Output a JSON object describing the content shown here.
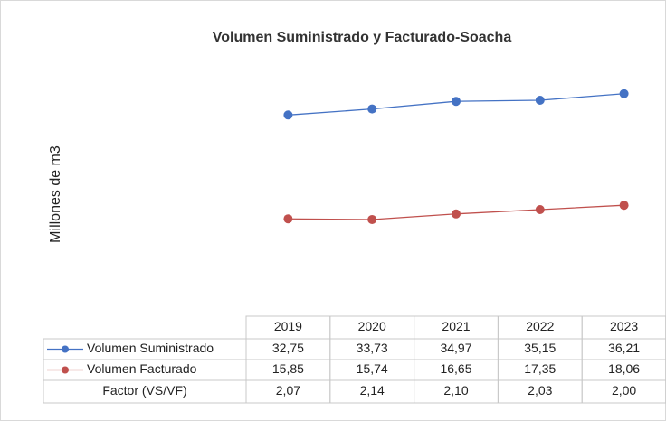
{
  "chart_data": {
    "type": "line",
    "title": "Volumen Suministrado y Facturado-Soacha",
    "y_label": "Millones de m3",
    "categories": [
      "2019",
      "2020",
      "2021",
      "2022",
      "2023"
    ],
    "ylim": [
      0,
      45
    ],
    "series": [
      {
        "name": "Volumen Suministrado",
        "color": "#4472c4",
        "values": [
          32.75,
          33.73,
          34.97,
          35.15,
          36.21
        ],
        "value_labels": [
          "32,75",
          "33,73",
          "34,97",
          "35,15",
          "36,21"
        ]
      },
      {
        "name": "Volumen Facturado",
        "color": "#c0504d",
        "values": [
          15.85,
          15.74,
          16.65,
          17.35,
          18.06
        ],
        "value_labels": [
          "15,85",
          "15,74",
          "16,65",
          "17,35",
          "18,06"
        ]
      }
    ],
    "factor": {
      "name": "Factor (VS/VF)",
      "labels": [
        "2,07",
        "2,14",
        "2,10",
        "2,03",
        "2,00"
      ]
    }
  }
}
